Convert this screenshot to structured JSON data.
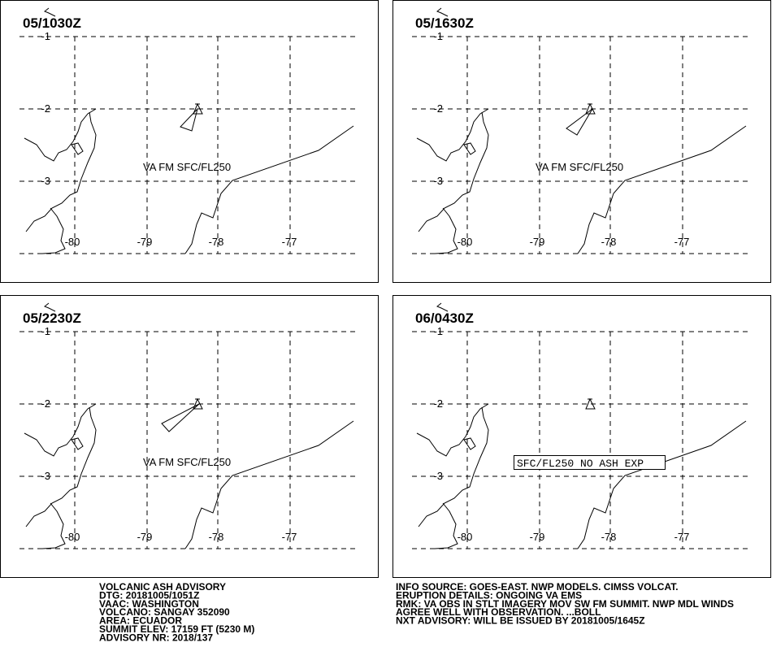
{
  "panels": [
    {
      "time": "05/1030Z",
      "lat_labels": [
        "-1",
        "-2",
        "-3"
      ],
      "lon_labels": [
        "-80",
        "-79",
        "-78",
        "-77"
      ],
      "annotation": "VA FM SFC/FL250"
    },
    {
      "time": "05/1630Z",
      "lat_labels": [
        "-1",
        "-2",
        "-3"
      ],
      "lon_labels": [
        "-80",
        "-79",
        "-78",
        "-77"
      ],
      "annotation": "VA FM SFC/FL250"
    },
    {
      "time": "05/2230Z",
      "lat_labels": [
        "-1",
        "-2",
        "-3"
      ],
      "lon_labels": [
        "-80",
        "-79",
        "-78",
        "-77"
      ],
      "annotation": "VA FM SFC/FL250"
    },
    {
      "time": "06/0430Z",
      "lat_labels": [
        "-1",
        "-2",
        "-3"
      ],
      "lon_labels": [
        "-80",
        "-79",
        "-78",
        "-77"
      ],
      "annotation": "SFC/FL250 NO ASH EXP"
    }
  ],
  "advisory_left": [
    "VOLCANIC ASH ADVISORY",
    "DTG: 20181005/1051Z",
    "VAAC: WASHINGTON",
    "VOLCANO: SANGAY 352090",
    "AREA: ECUADOR",
    "SUMMIT ELEV: 17159 FT (5230 M)",
    "ADVISORY NR: 2018/137"
  ],
  "advisory_right": [
    "INFO SOURCE: GOES-EAST. NWP MODELS. CIMSS VOLCAT.",
    "ERUPTION DETAILS: ONGOING VA EMS",
    "RMK: VA OBS IN STLT IMAGERY MOV SW FM SUMMIT. NWP MDL WINDS",
    "AGREE WELL WITH OBSERVATION.  ...BOLL",
    "NXT ADVISORY: WILL BE ISSUED BY 20181005/1645Z"
  ]
}
